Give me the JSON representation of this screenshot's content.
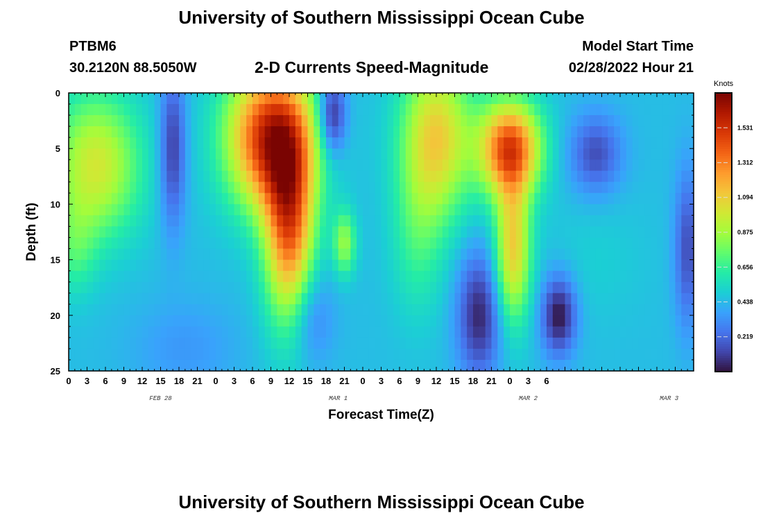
{
  "header": {
    "title": "University of Southern Mississippi Ocean Cube",
    "station_id": "PTBM6",
    "station_coords": "30.2120N  88.5050W",
    "plot_title": "2-D Currents Speed-Magnitude",
    "model_start_label": "Model Start Time",
    "model_start_value": "02/28/2022 Hour 21"
  },
  "footer": {
    "title": "University of Southern Mississippi Ocean Cube"
  },
  "chart_data": {
    "type": "heatmap",
    "xlabel": "Forecast Time(Z)",
    "ylabel": "Depth (ft)",
    "x_range_hours": [
      0,
      102
    ],
    "ylim": [
      0,
      25
    ],
    "y_inverted": true,
    "x_tick_labels": [
      "0",
      "3",
      "6",
      "9",
      "12",
      "15",
      "18",
      "21",
      "0",
      "3",
      "6",
      "9",
      "12",
      "15",
      "18",
      "21",
      "0",
      "3",
      "6",
      "9",
      "12",
      "15",
      "18",
      "21",
      "0",
      "3",
      "6"
    ],
    "y_tick_labels": [
      "0",
      "5",
      "10",
      "15",
      "20",
      "25"
    ],
    "date_labels": [
      {
        "text": "FEB 28",
        "hour": 15
      },
      {
        "text": "MAR 1",
        "hour": 44
      },
      {
        "text": "MAR 2",
        "hour": 75
      },
      {
        "text": "MAR 3",
        "hour": 98
      }
    ],
    "colorbar": {
      "title": "Knots",
      "range": [
        0,
        1.75
      ],
      "ticks": [
        "0.219",
        "0.438",
        "0.656",
        "0.875",
        "1.094",
        "1.312",
        "1.531"
      ],
      "colors": [
        "#30123b",
        "#4145ab",
        "#4675ed",
        "#39a2fc",
        "#1bcfd4",
        "#24eca6",
        "#61fc6c",
        "#a4fc3b",
        "#d1e834",
        "#f3c63a",
        "#fe9b2d",
        "#f36315",
        "#d93806",
        "#b11901",
        "#7a0402"
      ]
    },
    "blobs": [
      {
        "t": 4.5,
        "d": 6.5,
        "st": 5,
        "sd": 4.5,
        "a": 0.55
      },
      {
        "t": 1,
        "d": 14,
        "st": 2.5,
        "sd": 3,
        "a": 0.2
      },
      {
        "t": 17,
        "d": 5,
        "st": 1.5,
        "sd": 5,
        "a": -0.35
      },
      {
        "t": 19,
        "d": 23,
        "st": 6,
        "sd": 3,
        "a": -0.1
      },
      {
        "t": 33,
        "d": 4,
        "st": 5,
        "sd": 4.5,
        "a": 1.1
      },
      {
        "t": 36,
        "d": 12,
        "st": 2.8,
        "sd": 6,
        "a": 0.9
      },
      {
        "t": 43,
        "d": 2,
        "st": 1.6,
        "sd": 2.5,
        "a": -0.45
      },
      {
        "t": 39.5,
        "d": 20,
        "st": 2.5,
        "sd": 3,
        "a": -0.2
      },
      {
        "t": 45,
        "d": 13.5,
        "st": 1.3,
        "sd": 2,
        "a": 0.4
      },
      {
        "t": 60,
        "d": 4,
        "st": 4,
        "sd": 5,
        "a": 0.65
      },
      {
        "t": 57,
        "d": 13,
        "st": 3,
        "sd": 5,
        "a": 0.2
      },
      {
        "t": 72,
        "d": 5,
        "st": 3.5,
        "sd": 3,
        "a": 1.0
      },
      {
        "t": 72.5,
        "d": 14,
        "st": 2,
        "sd": 4.5,
        "a": 0.65
      },
      {
        "t": 67,
        "d": 20,
        "st": 2.5,
        "sd": 4,
        "a": -0.4
      },
      {
        "t": 80,
        "d": 20,
        "st": 2,
        "sd": 2.5,
        "a": -0.45
      },
      {
        "t": 86,
        "d": 5.5,
        "st": 3,
        "sd": 2.5,
        "a": -0.3
      },
      {
        "t": 101,
        "d": 14,
        "st": 1.5,
        "sd": 5,
        "a": -0.3
      },
      {
        "t": 86,
        "d": 15,
        "st": 6,
        "sd": 4,
        "a": 0.05
      }
    ]
  }
}
